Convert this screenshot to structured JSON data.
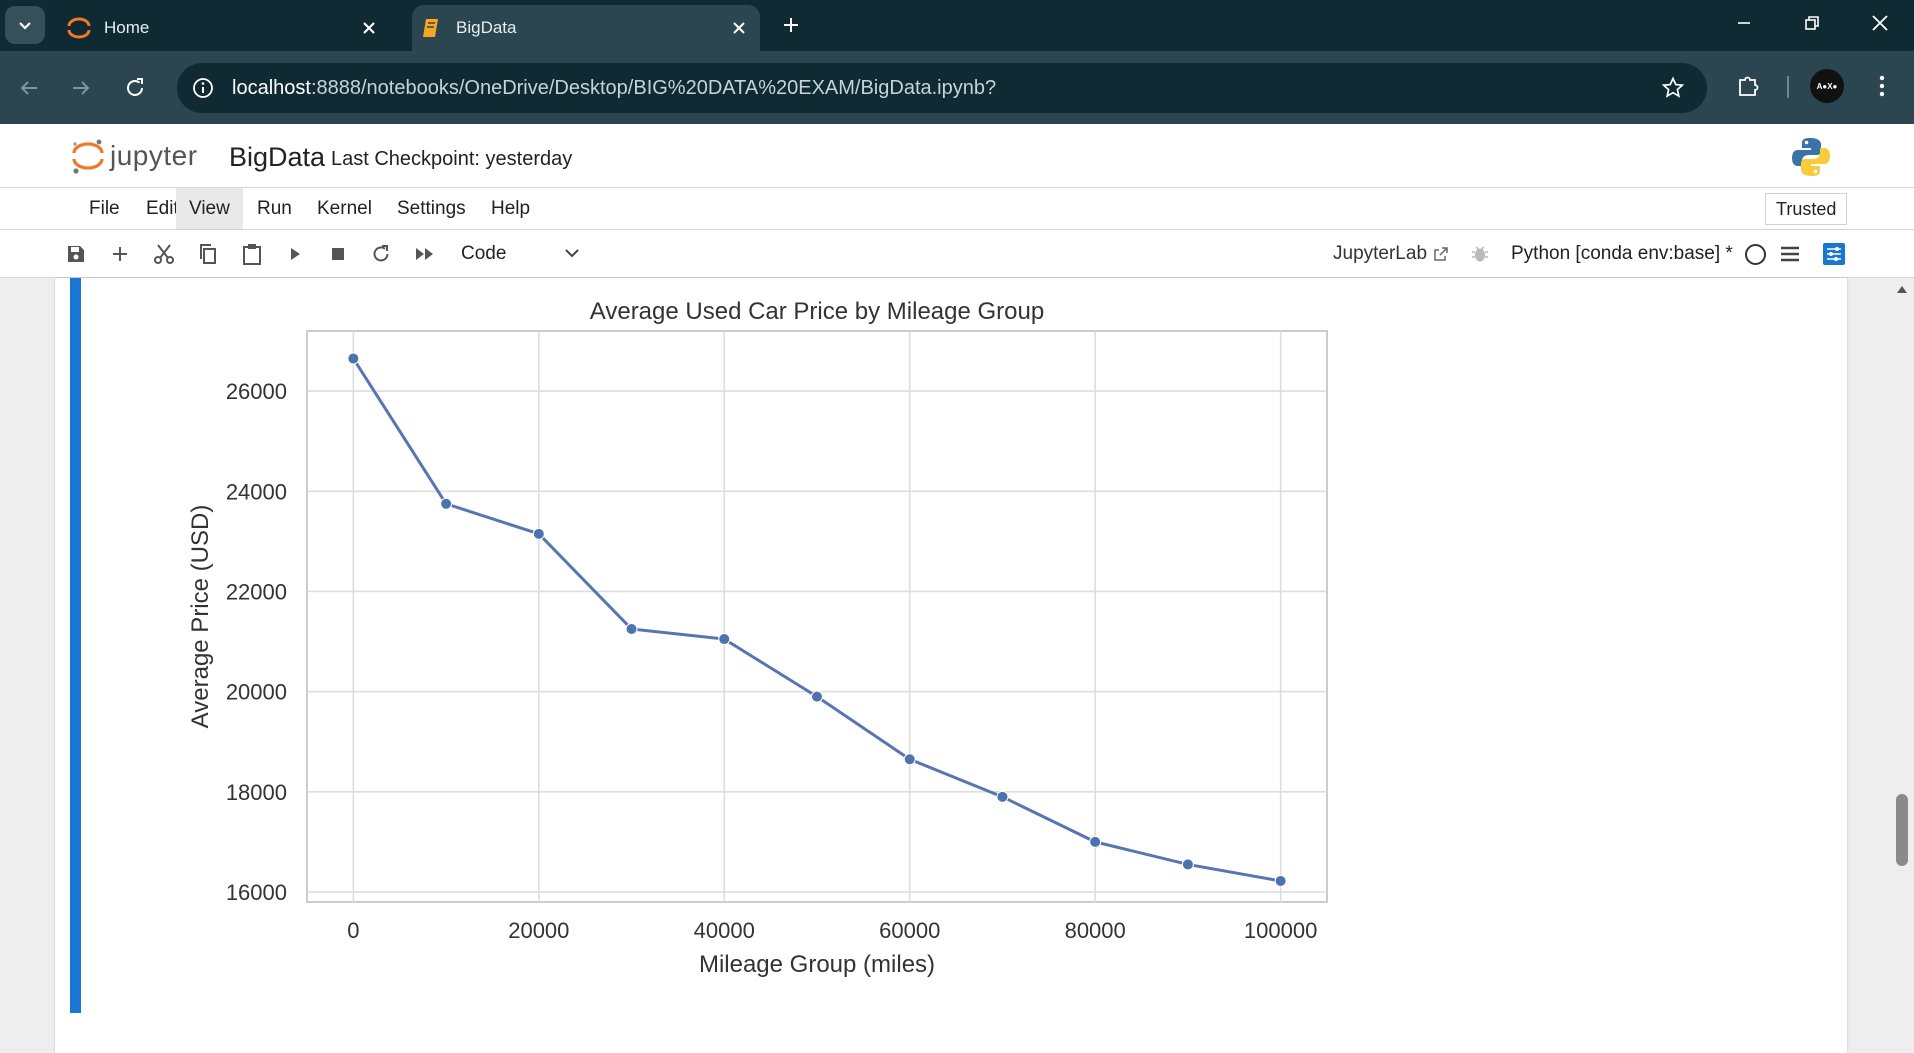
{
  "browser": {
    "tabs": [
      {
        "label": "Home",
        "icon": "jupyter-icon"
      },
      {
        "label": "BigData",
        "icon": "notebook-icon",
        "active": true
      }
    ],
    "url": {
      "host": "localhost",
      "path": ":8888/notebooks/OneDrive/Desktop/BIG%20DATA%20EXAM/BigData.ipynb?"
    },
    "profile_initials": "A●X●"
  },
  "jupyter": {
    "logo_text": "jupyter",
    "notebook_name": "BigData",
    "checkpoint": "Last Checkpoint: yesterday",
    "menu": [
      "File",
      "Edit",
      "View",
      "Run",
      "Kernel",
      "Settings",
      "Help"
    ],
    "active_menu": "View",
    "trusted": "Trusted",
    "cell_type": "Code",
    "jupyterlab_link": "JupyterLab",
    "kernel": "Python [conda env:base] *"
  },
  "chart_data": {
    "type": "line",
    "title": "Average Used Car Price by Mileage Group",
    "xlabel": "Mileage Group (miles)",
    "ylabel": "Average Price (USD)",
    "x": [
      0,
      10000,
      20000,
      30000,
      40000,
      50000,
      60000,
      70000,
      80000,
      90000,
      100000
    ],
    "y": [
      26650,
      23750,
      23150,
      21250,
      21050,
      19900,
      18650,
      17900,
      17000,
      16550,
      16220
    ],
    "xlim": [
      -5000,
      105000
    ],
    "ylim": [
      15800,
      27200
    ],
    "xticks": [
      "0",
      "20000",
      "40000",
      "60000",
      "80000",
      "100000"
    ],
    "yticks": [
      "16000",
      "18000",
      "20000",
      "22000",
      "24000",
      "26000"
    ],
    "grid": true,
    "line_color": "#5875b2"
  }
}
